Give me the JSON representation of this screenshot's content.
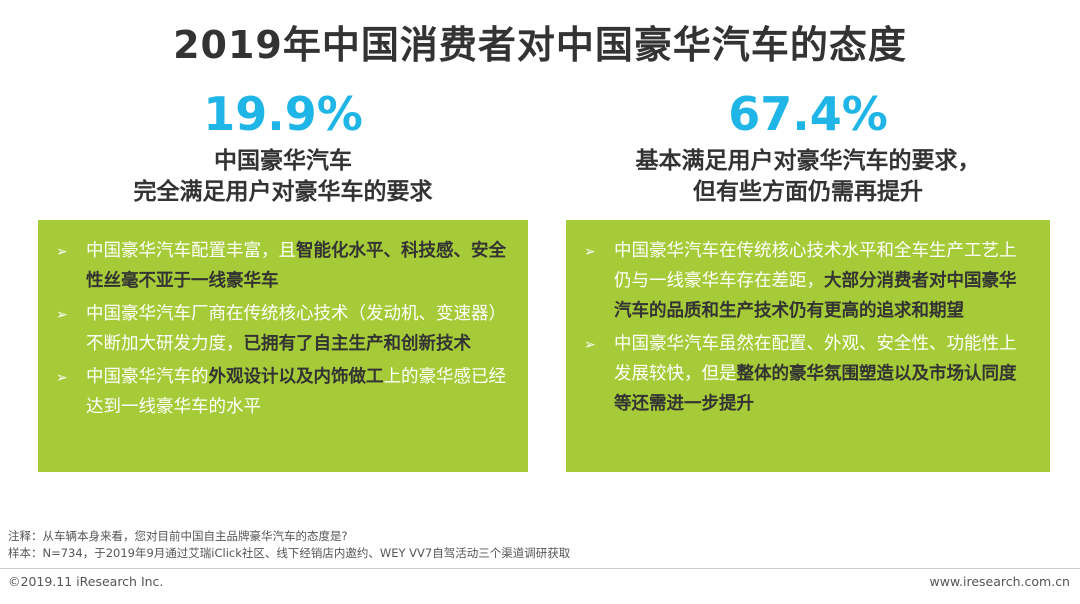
{
  "title": "2019年中国消费者对中国豪华汽车的态度",
  "left": {
    "percent": "19.9%",
    "heading_line1": "中国豪华汽车",
    "heading_line2": "完全满足用户对豪华车的要求",
    "bullets": [
      {
        "parts": [
          {
            "text": "中国豪华汽车配置丰富，且",
            "bold": false
          },
          {
            "text": "智能化水平、科技感、安全性丝毫不亚于一线豪华车",
            "bold": true
          }
        ]
      },
      {
        "parts": [
          {
            "text": "中国豪华汽车厂商在传统核心技术（发动机、变速器）不断加大研发力度，",
            "bold": false
          },
          {
            "text": "已拥有了自主生产和创新技术",
            "bold": true
          }
        ]
      },
      {
        "parts": [
          {
            "text": "中国豪华汽车的",
            "bold": false
          },
          {
            "text": "外观设计以及内饰做工",
            "bold": true
          },
          {
            "text": "上的豪华感已经达到一线豪华车的水平",
            "bold": false
          }
        ]
      }
    ]
  },
  "right": {
    "percent": "67.4%",
    "heading_line1": "基本满足用户对豪华汽车的要求，",
    "heading_line2": "但有些方面仍需再提升",
    "bullets": [
      {
        "parts": [
          {
            "text": "中国豪华汽车在传统核心技术水平和全车生产工艺上仍与一线豪华车存在差距，",
            "bold": false
          },
          {
            "text": "大部分消费者对中国豪华汽车的品质和生产技术仍有更高的追求和期望",
            "bold": true
          }
        ]
      },
      {
        "parts": [
          {
            "text": "中国豪华汽车虽然在配置、外观、安全性、功能性上发展较快，但是",
            "bold": false
          },
          {
            "text": "整体的豪华氛围塑造以及市场认同度等还需进一步提升",
            "bold": true
          }
        ]
      }
    ]
  },
  "notes": {
    "line1": "注释：从车辆本身来看，您对目前中国自主品牌豪华汽车的态度是?",
    "line2": "样本：N=734，于2019年9月通过艾瑞iClick社区、线下经销店内邀约、WEY VV7自驾活动三个渠道调研获取"
  },
  "footer": {
    "copyright": "©2019.11 iResearch Inc.",
    "website": "www.iresearch.com.cn"
  },
  "colors": {
    "accent_blue": "#1fb5e6",
    "box_green": "#a6cb38"
  },
  "icons": {
    "bullet": "arrow-right-icon"
  }
}
